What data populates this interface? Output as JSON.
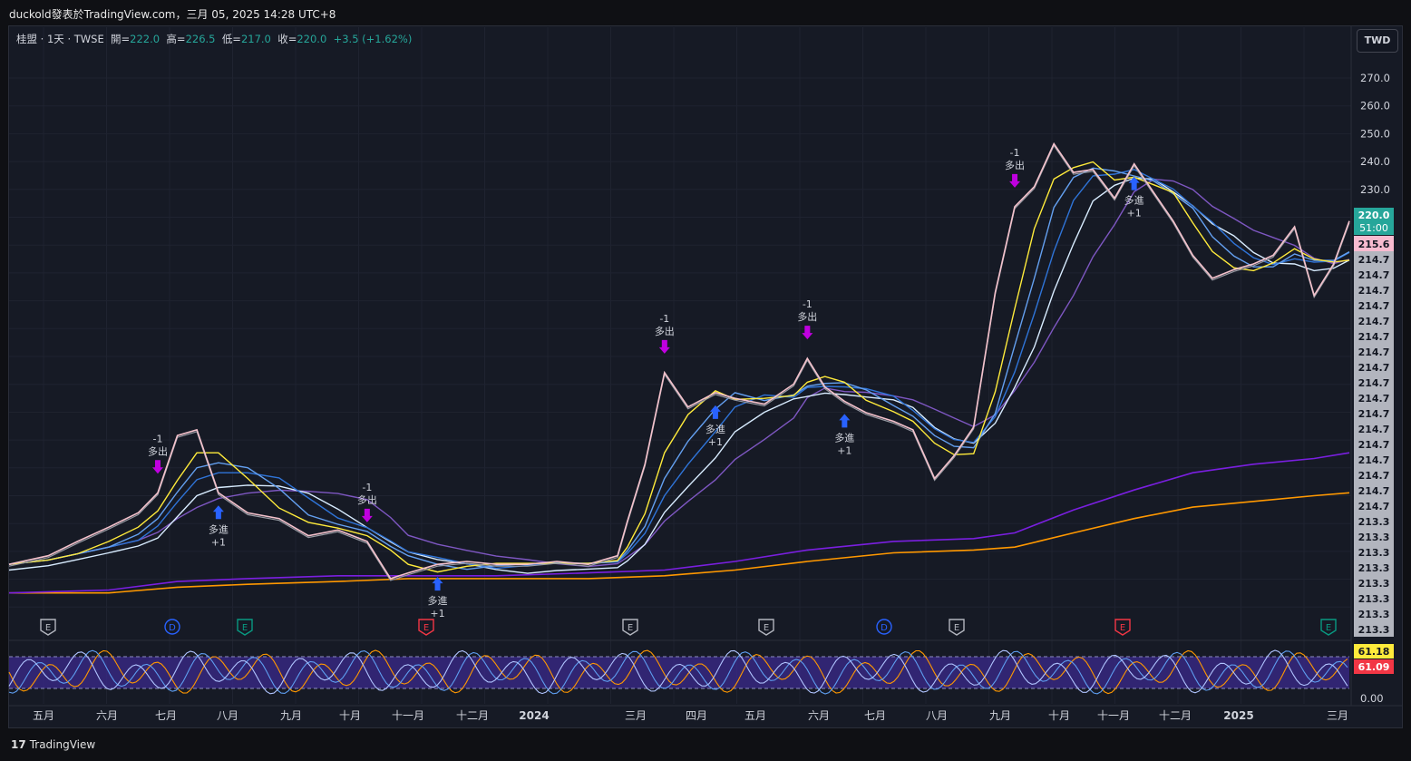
{
  "header": {
    "published": "duckold發表於TradingView.com，三月 05, 2025 14:28 UTC+8"
  },
  "legend": {
    "symbol": "桂盟 · 1天 · TWSE",
    "open_label": "開=",
    "open": "222.0",
    "high_label": "高=",
    "high": "226.5",
    "low_label": "低=",
    "low": "217.0",
    "close_label": "收=",
    "close": "220.0",
    "change": "+3.5 (+1.62%)"
  },
  "currency_button": "TWD",
  "footer": {
    "brand": "TradingView",
    "logo_glyph": "17"
  },
  "colors": {
    "price": "#f4c2cc",
    "ma_yellow": "#ffeb3b",
    "ma_blue1": "#64a0f0",
    "ma_blue2": "#2f74d8",
    "ma_light": "#d8ecff",
    "ma_purple": "#7e57c2",
    "ma_violet": "#7a1fe0",
    "ma_orange": "#ff9800",
    "sell_marker": "#c000e0",
    "buy_marker": "#2962ff",
    "current_price_bg": "#26a69a",
    "ma_value_bg": "#b2b5be",
    "ma_value2_bg": "#f8bbd0"
  },
  "chart_data": [
    {
      "type": "line",
      "name": "price",
      "x": [
        "2023-04-20",
        "2023-05-10",
        "2023-05-25",
        "2023-06-10",
        "2023-06-25",
        "2023-07-05",
        "2023-07-15",
        "2023-07-25",
        "2023-08-05",
        "2023-08-20",
        "2023-09-05",
        "2023-09-20",
        "2023-10-05",
        "2023-10-20",
        "2023-11-01",
        "2023-11-10",
        "2023-11-25",
        "2023-12-10",
        "2023-12-25",
        "2024-01-10",
        "2024-01-25",
        "2024-02-10",
        "2024-02-25",
        "2024-03-01",
        "2024-03-10",
        "2024-03-20",
        "2024-04-01",
        "2024-04-15",
        "2024-04-25",
        "2024-05-10",
        "2024-05-25",
        "2024-06-01",
        "2024-06-10",
        "2024-06-20",
        "2024-07-01",
        "2024-07-15",
        "2024-07-25",
        "2024-08-05",
        "2024-08-15",
        "2024-08-25",
        "2024-09-05",
        "2024-09-15",
        "2024-09-25",
        "2024-10-05",
        "2024-10-15",
        "2024-10-25",
        "2024-11-05",
        "2024-11-15",
        "2024-11-25",
        "2024-12-05",
        "2024-12-15",
        "2024-12-25",
        "2025-01-05",
        "2025-01-15",
        "2025-01-25",
        "2025-02-05",
        "2025-02-15",
        "2025-02-25",
        "2025-03-05"
      ],
      "y": [
        100,
        103,
        108,
        113,
        118,
        125,
        145,
        147,
        125,
        118,
        116,
        110,
        112,
        108,
        95,
        97,
        100,
        101,
        100,
        100,
        101,
        100,
        103,
        115,
        135,
        167,
        155,
        160,
        158,
        156,
        163,
        172,
        162,
        157,
        153,
        150,
        147,
        130,
        138,
        148,
        195,
        225,
        232,
        247,
        237,
        238,
        228,
        240,
        230,
        220,
        208,
        200,
        203,
        205,
        208,
        218,
        194,
        205,
        220
      ]
    },
    {
      "type": "line",
      "name": "ma-long-violet",
      "x": [
        "2023-04-20",
        "2023-06-10",
        "2023-07-15",
        "2023-08-20",
        "2023-10-05",
        "2023-11-10",
        "2023-12-25",
        "2024-02-10",
        "2024-03-20",
        "2024-04-25",
        "2024-06-01",
        "2024-07-15",
        "2024-08-25",
        "2024-09-15",
        "2024-10-15",
        "2024-11-15",
        "2024-12-15",
        "2025-01-15",
        "2025-02-15",
        "2025-03-05"
      ],
      "y": [
        90,
        91,
        94,
        95,
        96,
        96,
        96,
        97,
        98,
        101,
        105,
        108,
        109,
        111,
        119,
        126,
        132,
        135,
        137,
        139
      ]
    },
    {
      "type": "line",
      "name": "ma-long-orange",
      "x": [
        "2023-04-20",
        "2023-06-10",
        "2023-07-15",
        "2023-08-20",
        "2023-10-05",
        "2023-11-10",
        "2023-12-25",
        "2024-02-10",
        "2024-03-20",
        "2024-04-25",
        "2024-06-01",
        "2024-07-15",
        "2024-08-25",
        "2024-09-15",
        "2024-10-15",
        "2024-11-15",
        "2024-12-15",
        "2025-01-15",
        "2025-02-15",
        "2025-03-05"
      ],
      "y": [
        90,
        90,
        92,
        93,
        94,
        95,
        95,
        95,
        96,
        98,
        101,
        104,
        105,
        106,
        111,
        116,
        120,
        122,
        124,
        125
      ]
    },
    {
      "type": "line",
      "name": "oscillator",
      "y_axis_label": "0.00",
      "values": [
        "61.18",
        "61.09"
      ]
    }
  ],
  "axes": {
    "y_ticks": [
      "270.0",
      "260.0",
      "250.0",
      "240.0",
      "230.0"
    ],
    "x_ticks": [
      "五月",
      "六月",
      "七月",
      "八月",
      "九月",
      "十月",
      "十一月",
      "十二月",
      "2024",
      "三月",
      "四月",
      "五月",
      "六月",
      "七月",
      "八月",
      "九月",
      "十月",
      "十一月",
      "十二月",
      "2025",
      "三月"
    ],
    "price_label": "220.0",
    "countdown": "51:00",
    "ma_labels": [
      "215.6",
      "214.7",
      "214.7",
      "214.7",
      "214.7",
      "214.7",
      "214.7",
      "214.7",
      "214.7",
      "214.7",
      "214.7",
      "214.7",
      "214.7",
      "214.7",
      "214.7",
      "214.7",
      "214.7",
      "214.7",
      "213.3",
      "213.3",
      "213.3",
      "213.3",
      "213.3",
      "213.3",
      "213.3",
      "213.3"
    ]
  },
  "signals": [
    {
      "kind": "sell",
      "line1": "-1",
      "line2": "多出"
    },
    {
      "kind": "buy",
      "line1": "多進",
      "line2": "+1"
    },
    {
      "kind": "sell",
      "line1": "-1",
      "line2": "多出"
    },
    {
      "kind": "buy",
      "line1": "多進",
      "line2": "+1"
    },
    {
      "kind": "sell",
      "line1": "-1",
      "line2": "多出"
    },
    {
      "kind": "buy",
      "line1": "多進",
      "line2": "+1"
    },
    {
      "kind": "sell",
      "line1": "-1",
      "line2": "多出"
    },
    {
      "kind": "buy",
      "line1": "多進",
      "line2": "+1"
    },
    {
      "kind": "sell",
      "line1": "-1",
      "line2": "多出"
    },
    {
      "kind": "buy",
      "line1": "多進",
      "line2": "+1"
    }
  ],
  "events": [
    {
      "letter": "E",
      "color": "#b2b5be"
    },
    {
      "letter": "D",
      "color": "#2962ff"
    },
    {
      "letter": "E",
      "color": "#089981"
    },
    {
      "letter": "E",
      "color": "#f23645"
    },
    {
      "letter": "E",
      "color": "#b2b5be"
    },
    {
      "letter": "E",
      "color": "#b2b5be"
    },
    {
      "letter": "D",
      "color": "#2962ff"
    },
    {
      "letter": "E",
      "color": "#b2b5be"
    },
    {
      "letter": "E",
      "color": "#f23645"
    },
    {
      "letter": "E",
      "color": "#089981"
    }
  ]
}
